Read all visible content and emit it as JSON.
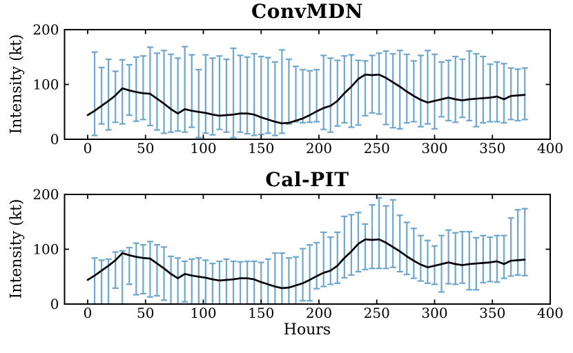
{
  "figure": {
    "background": "#ffffff",
    "errorbar_blue": "#6da6ce",
    "line_black": "#000000"
  },
  "chart_data": [
    {
      "type": "line+errorbar",
      "title": "ConvMDN",
      "xlabel": "",
      "ylabel": "Intensity (kt)",
      "xlim": [
        -20,
        400
      ],
      "ylim": [
        0,
        200
      ],
      "xticks": [
        0,
        50,
        100,
        150,
        200,
        250,
        300,
        350,
        400
      ],
      "yticks": [
        0,
        100,
        200
      ],
      "grid": false,
      "legend": null,
      "line_color": "#000000",
      "errorbar_color": "#6da6ce",
      "line": {
        "x": [
          0,
          6,
          12,
          18,
          24,
          30,
          36,
          42,
          48,
          54,
          60,
          66,
          72,
          78,
          84,
          90,
          96,
          102,
          108,
          114,
          120,
          126,
          132,
          138,
          144,
          150,
          156,
          162,
          168,
          174,
          180,
          186,
          192,
          198,
          204,
          210,
          216,
          222,
          228,
          234,
          240,
          246,
          252,
          258,
          264,
          270,
          276,
          282,
          288,
          294,
          300,
          306,
          312,
          318,
          324,
          330,
          336,
          342,
          348,
          354,
          360,
          366,
          372,
          378
        ],
        "y": [
          44,
          52,
          61,
          70,
          80,
          93,
          89,
          86,
          84,
          83,
          74,
          65,
          55,
          47,
          55,
          52,
          50,
          48,
          45,
          43,
          44,
          45,
          47,
          47,
          45,
          40,
          36,
          32,
          29,
          30,
          34,
          38,
          44,
          51,
          57,
          61,
          70,
          84,
          96,
          110,
          118,
          117,
          118,
          112,
          104,
          96,
          87,
          79,
          72,
          67,
          70,
          73,
          76,
          73,
          71,
          73,
          74,
          75,
          76,
          78,
          73,
          79,
          80,
          81
        ]
      },
      "errorbars": {
        "x": [
          6,
          12,
          18,
          24,
          30,
          36,
          42,
          48,
          54,
          60,
          66,
          72,
          78,
          84,
          90,
          96,
          102,
          108,
          114,
          120,
          126,
          132,
          138,
          144,
          150,
          156,
          162,
          168,
          174,
          180,
          186,
          192,
          198,
          204,
          210,
          216,
          222,
          228,
          234,
          240,
          246,
          252,
          258,
          264,
          270,
          276,
          282,
          288,
          294,
          300,
          306,
          312,
          318,
          324,
          330,
          336,
          342,
          348,
          354,
          360,
          366,
          372,
          378
        ],
        "lo": [
          7,
          28,
          17,
          31,
          28,
          44,
          33,
          36,
          25,
          17,
          11,
          13,
          15,
          13,
          22,
          3,
          11,
          8,
          18,
          13,
          3,
          13,
          10,
          7,
          9,
          11,
          7,
          11,
          28,
          32,
          30,
          31,
          32,
          18,
          13,
          24,
          30,
          22,
          26,
          43,
          48,
          46,
          27,
          21,
          19,
          30,
          32,
          23,
          28,
          19,
          41,
          34,
          31,
          40,
          34,
          23,
          30,
          32,
          32,
          30,
          36,
          34,
          36
        ],
        "hi": [
          159,
          131,
          146,
          124,
          145,
          136,
          150,
          152,
          168,
          157,
          162,
          155,
          148,
          169,
          154,
          127,
          154,
          148,
          152,
          146,
          166,
          153,
          150,
          156,
          151,
          149,
          141,
          163,
          146,
          133,
          127,
          125,
          127,
          153,
          148,
          144,
          152,
          154,
          144,
          143,
          153,
          157,
          161,
          156,
          162,
          155,
          143,
          153,
          162,
          155,
          141,
          144,
          151,
          146,
          161,
          156,
          151,
          137,
          141,
          138,
          130,
          128,
          130
        ]
      }
    },
    {
      "type": "line+errorbar",
      "title": "Cal-PIT",
      "xlabel": "Hours",
      "ylabel": "Intensity (kt)",
      "xlim": [
        -20,
        400
      ],
      "ylim": [
        0,
        200
      ],
      "xticks": [
        0,
        50,
        100,
        150,
        200,
        250,
        300,
        350,
        400
      ],
      "yticks": [
        0,
        100,
        200
      ],
      "grid": false,
      "legend": null,
      "line_color": "#000000",
      "errorbar_color": "#6da6ce",
      "line": {
        "x": [
          0,
          6,
          12,
          18,
          24,
          30,
          36,
          42,
          48,
          54,
          60,
          66,
          72,
          78,
          84,
          90,
          96,
          102,
          108,
          114,
          120,
          126,
          132,
          138,
          144,
          150,
          156,
          162,
          168,
          174,
          180,
          186,
          192,
          198,
          204,
          210,
          216,
          222,
          228,
          234,
          240,
          246,
          252,
          258,
          264,
          270,
          276,
          282,
          288,
          294,
          300,
          306,
          312,
          318,
          324,
          330,
          336,
          342,
          348,
          354,
          360,
          366,
          372,
          378
        ],
        "y": [
          44,
          52,
          61,
          70,
          80,
          93,
          89,
          86,
          84,
          83,
          74,
          65,
          55,
          47,
          55,
          52,
          50,
          48,
          45,
          43,
          44,
          45,
          47,
          47,
          45,
          40,
          36,
          32,
          29,
          30,
          34,
          38,
          44,
          51,
          57,
          61,
          70,
          84,
          96,
          110,
          118,
          117,
          118,
          112,
          104,
          96,
          87,
          79,
          72,
          67,
          70,
          73,
          76,
          73,
          71,
          73,
          74,
          75,
          76,
          78,
          73,
          79,
          80,
          81
        ]
      },
      "errorbars": {
        "x": [
          6,
          12,
          18,
          24,
          30,
          36,
          42,
          48,
          54,
          60,
          66,
          72,
          78,
          84,
          90,
          96,
          102,
          108,
          114,
          120,
          126,
          132,
          138,
          144,
          150,
          156,
          162,
          168,
          174,
          180,
          186,
          192,
          198,
          204,
          210,
          216,
          222,
          228,
          234,
          240,
          246,
          252,
          258,
          264,
          270,
          276,
          282,
          288,
          294,
          300,
          306,
          312,
          318,
          324,
          330,
          336,
          342,
          348,
          354,
          360,
          366,
          372,
          378
        ],
        "lo": [
          0,
          0,
          0,
          29,
          0,
          36,
          17,
          19,
          13,
          15,
          7,
          0,
          0,
          4,
          0,
          0,
          0,
          0,
          0,
          0,
          0,
          0,
          0,
          0,
          0,
          0,
          0,
          0,
          0,
          0,
          6,
          6,
          28,
          32,
          36,
          38,
          48,
          53,
          59,
          63,
          65,
          65,
          65,
          67,
          59,
          54,
          47,
          42,
          38,
          36,
          22,
          37,
          36,
          38,
          26,
          26,
          39,
          41,
          40,
          47,
          51,
          53,
          52
        ],
        "hi": [
          84,
          80,
          82,
          95,
          97,
          103,
          111,
          108,
          114,
          108,
          104,
          87,
          84,
          78,
          82,
          84,
          80,
          74,
          78,
          82,
          78,
          77,
          78,
          78,
          76,
          82,
          93,
          93,
          84,
          86,
          101,
          108,
          112,
          131,
          122,
          131,
          160,
          163,
          167,
          146,
          181,
          194,
          179,
          190,
          162,
          149,
          138,
          125,
          116,
          106,
          125,
          135,
          130,
          132,
          132,
          121,
          125,
          122,
          125,
          125,
          157,
          172,
          174
        ]
      }
    }
  ]
}
